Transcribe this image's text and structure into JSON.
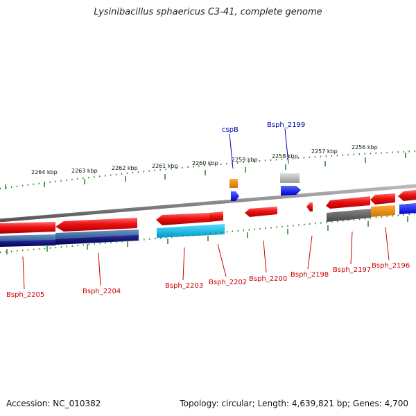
{
  "title": "Lysinibacillus sphaericus C3-41, complete genome",
  "accession": "Accession: NC_010382",
  "summary": "Topology: circular; Length: 4,639,821 bp; Genes: 4,700",
  "kbp_labels": [
    "2264 kbp",
    "2263 kbp",
    "2262 kbp",
    "2261 kbp",
    "2260 kbp",
    "2259 kbp",
    "2258 kbp",
    "2257 kbp",
    "2256 kbp"
  ],
  "gene_labels_below": [
    "Bsph_2205",
    "Bsph_2204",
    "Bsph_2203",
    "Bsph_2202",
    "Bsph_2200",
    "Bsph_2198",
    "Bsph_2197",
    "Bsph_2196"
  ],
  "gene_labels_above": [
    "cspB",
    "Bsph_2199"
  ],
  "colors": {
    "label_below": "#cc0000",
    "label_above": "#0000aa",
    "tick": "#2e8b2e",
    "backbone": "#888888",
    "forward_gene": "#ee1111",
    "cds_blue": "#0000ee",
    "cds_cyan": "#00aadd",
    "cds_orange": "#ee8800",
    "cds_gray": "#999999",
    "cds_dark": "#111166"
  }
}
